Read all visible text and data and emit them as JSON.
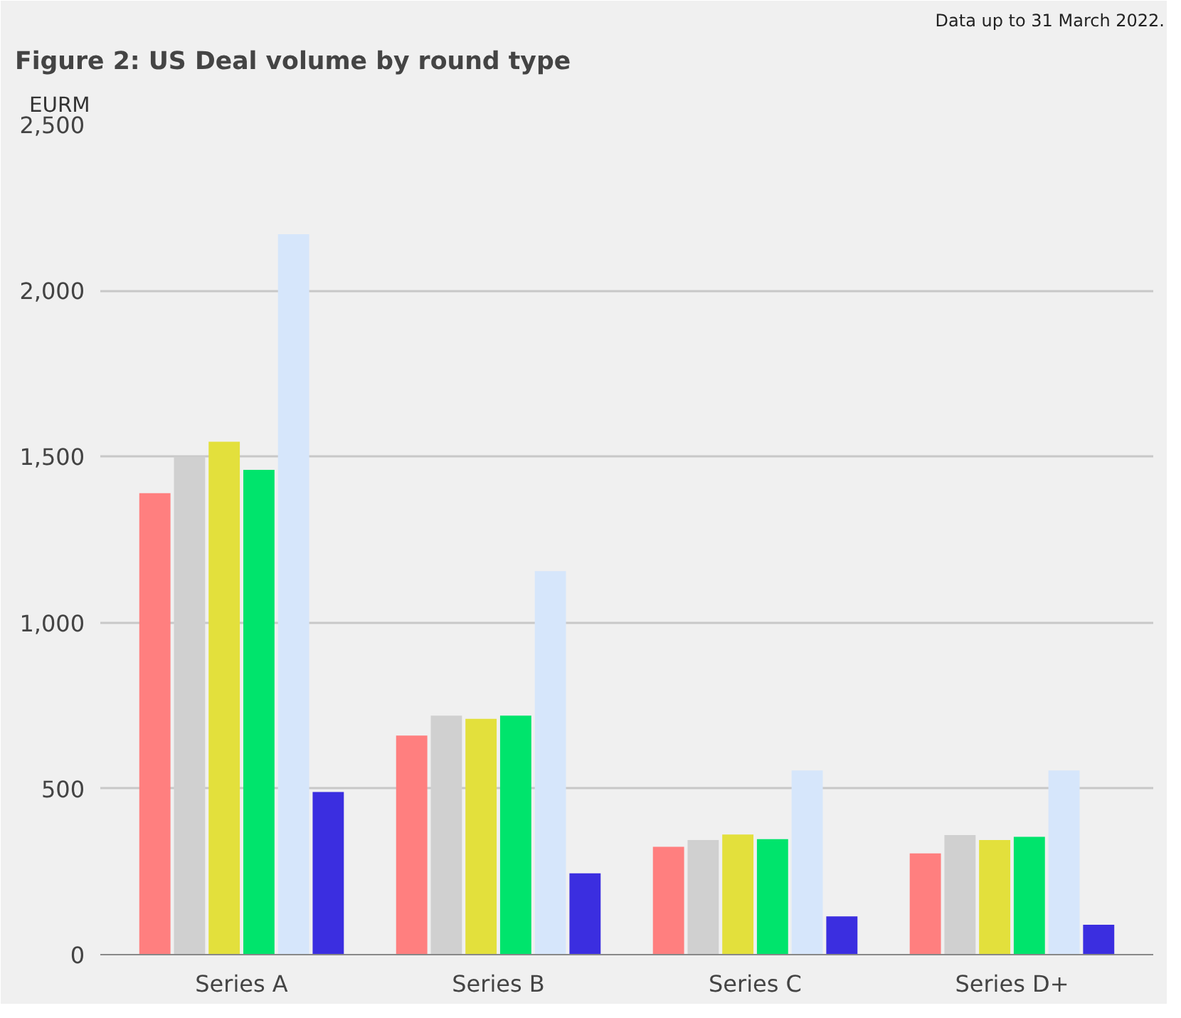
{
  "chart_data": {
    "type": "bar",
    "title": "Figure 2: US Deal volume by round type",
    "ylabel": "EURM",
    "annotations": [
      "Data up to 31 March 2022."
    ],
    "categories": [
      "Series A",
      "Series B",
      "Series C",
      "Series D+"
    ],
    "series": [
      {
        "color": "#ff7f7f",
        "values": [
          1390,
          660,
          325,
          305
        ]
      },
      {
        "color": "#d0d0d0",
        "values": [
          1500,
          720,
          345,
          360
        ]
      },
      {
        "color": "#e3e03c",
        "values": [
          1545,
          710,
          362,
          345
        ]
      },
      {
        "color": "#00e46c",
        "values": [
          1460,
          720,
          348,
          355
        ]
      },
      {
        "color": "#d6e6fb",
        "values": [
          2170,
          1155,
          555,
          555
        ]
      },
      {
        "color": "#3b2ee0",
        "values": [
          490,
          245,
          115,
          90
        ]
      }
    ],
    "ylim": [
      0,
      2500
    ],
    "yticks": [
      0,
      {
        "value": 500,
        "label": "500"
      },
      {
        "value": 1000,
        "label": "1,000"
      },
      {
        "value": 1500,
        "label": "1,500"
      },
      {
        "value": 2000,
        "label": "2,000"
      },
      {
        "value": 2500,
        "label": "2,500"
      }
    ],
    "grid": "y"
  }
}
